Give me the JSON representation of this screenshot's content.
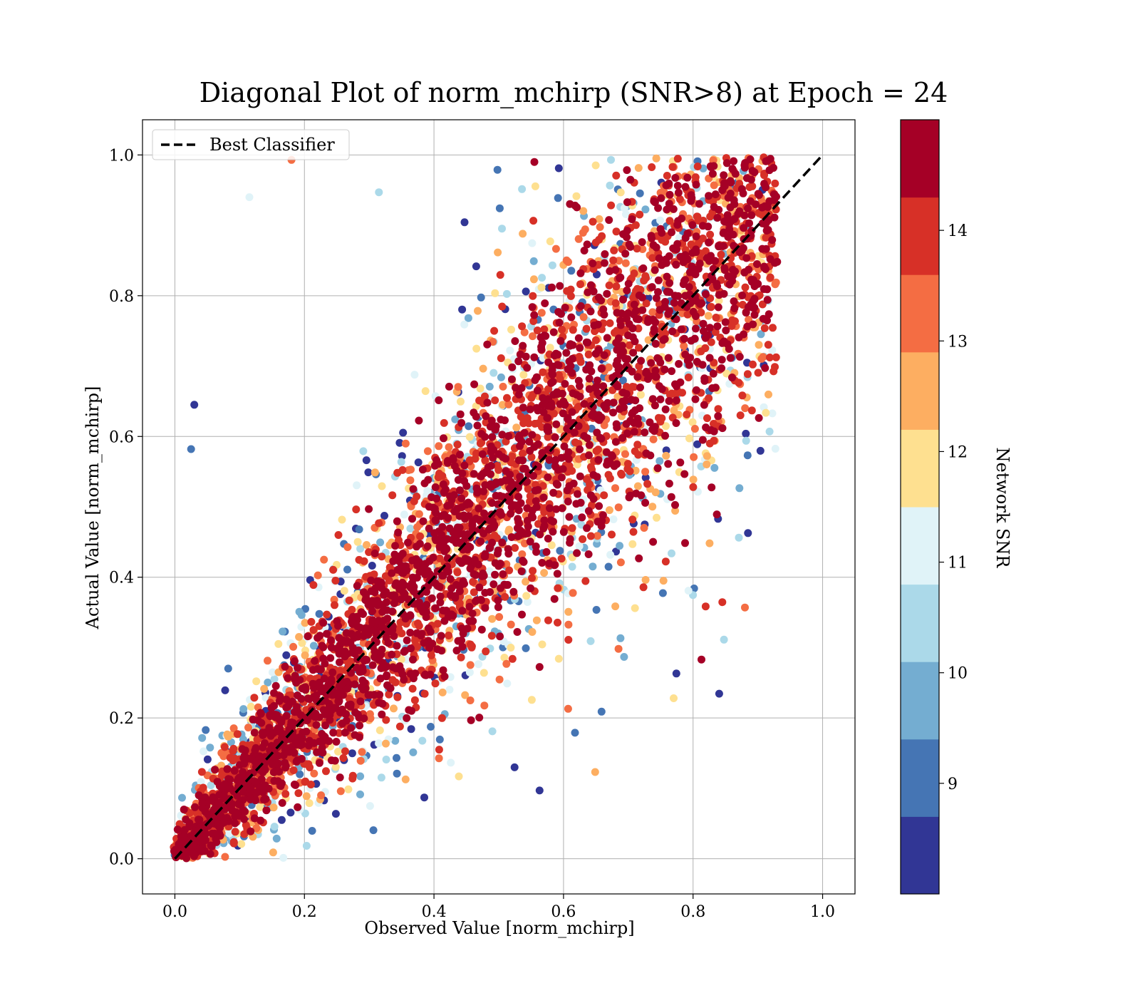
{
  "chart_data": {
    "type": "scatter",
    "title": "Diagonal Plot of norm_mchirp (SNR>8) at Epoch = 24",
    "xlabel": "Observed Value [norm_mchirp]",
    "ylabel": "Actual Value [norm_mchirp]",
    "xlim": [
      -0.05,
      1.05
    ],
    "ylim": [
      -0.05,
      1.05
    ],
    "xticks": [
      0.0,
      0.2,
      0.4,
      0.6,
      0.8,
      1.0
    ],
    "yticks": [
      0.0,
      0.2,
      0.4,
      0.6,
      0.8,
      1.0
    ],
    "xtick_labels": [
      "0.0",
      "0.2",
      "0.4",
      "0.6",
      "0.8",
      "1.0"
    ],
    "ytick_labels": [
      "0.0",
      "0.2",
      "0.4",
      "0.6",
      "0.8",
      "1.0"
    ],
    "grid": true,
    "reference_line": {
      "name": "Best Classifier",
      "style": "dashed",
      "color": "#000000",
      "x": [
        0.0,
        1.0
      ],
      "y": [
        0.0,
        1.0
      ]
    },
    "legend": {
      "placement": "top-left",
      "entries": [
        "Best Classifier"
      ]
    },
    "colorbar": {
      "label": "Network SNR",
      "range": [
        8.0,
        15.0
      ],
      "ticks": [
        9,
        10,
        11,
        12,
        13,
        14
      ],
      "tick_labels": [
        "9",
        "10",
        "11",
        "12",
        "13",
        "14"
      ],
      "colormap": "RdYlBu_r",
      "colors": [
        "#313695",
        "#4575b4",
        "#74add1",
        "#abd9e9",
        "#e0f3f8",
        "#fee090",
        "#fdae61",
        "#f46d43",
        "#d73027",
        "#a50026"
      ]
    },
    "highlighted_points": [
      {
        "x": 0.385,
        "y": 0.087,
        "snr": 8.3
      },
      {
        "x": 0.563,
        "y": 0.097,
        "snr": 8.3
      },
      {
        "x": 0.18,
        "y": 0.993,
        "snr": 13.5
      },
      {
        "x": 0.88,
        "y": 0.357,
        "snr": 13.4
      },
      {
        "x": 0.813,
        "y": 0.283,
        "snr": 14.6
      },
      {
        "x": 0.03,
        "y": 0.645,
        "snr": 8.3
      },
      {
        "x": 0.025,
        "y": 0.582,
        "snr": 9.2
      },
      {
        "x": 0.115,
        "y": 0.94,
        "snr": 11.1
      },
      {
        "x": 0.315,
        "y": 0.947,
        "snr": 10.3
      },
      {
        "x": 0.555,
        "y": 0.99,
        "snr": 14.8
      },
      {
        "x": 0.77,
        "y": 0.228,
        "snr": 12.2
      },
      {
        "x": 0.408,
        "y": 0.155,
        "snr": 14.0
      }
    ]
  }
}
